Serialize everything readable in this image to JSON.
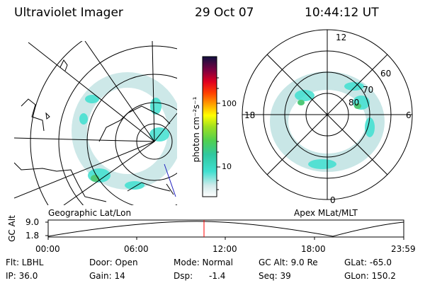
{
  "header": {
    "instrument": "Ultraviolet Imager",
    "date": "29 Oct 07",
    "time": "10:44:12 UT"
  },
  "colorbar": {
    "unit_label": "photon cm⁻²s⁻¹",
    "ticks": [
      "100",
      "10"
    ]
  },
  "left_panel": {
    "caption": "Geographic Lat/Lon"
  },
  "right_panel": {
    "caption": "Apex MLat/MLT",
    "mlt_labels": [
      "12",
      "18",
      "6",
      "0"
    ],
    "mlat_labels": [
      "60",
      "70",
      "80"
    ]
  },
  "altitude_plot": {
    "ylabel": "GC Alt",
    "yticks": [
      "9.0",
      "1.8"
    ],
    "xticks": [
      "00:00",
      "06:00",
      "12:00",
      "18:00",
      "23:59"
    ]
  },
  "status": {
    "filter_label": "Flt: LBHL",
    "ip_label": "IP: 36.0",
    "door_label": "Door: Open",
    "gain_label": "Gain: 14",
    "mode_label": "Mode: Normal",
    "dsp_label": "Dsp:",
    "dsp_value": "-1.4",
    "gcalt_label": "GC Alt: 9.0 Re",
    "seq_label": "Seq: 39",
    "glat_label": "GLat: -65.0",
    "glon_label": "GLon: 150.2"
  },
  "colors": {
    "aurora_light": "#c8e6e6",
    "aurora_cyan": "#40e0d0",
    "aurora_green": "#50c878",
    "marker_red": "#ff0000"
  }
}
